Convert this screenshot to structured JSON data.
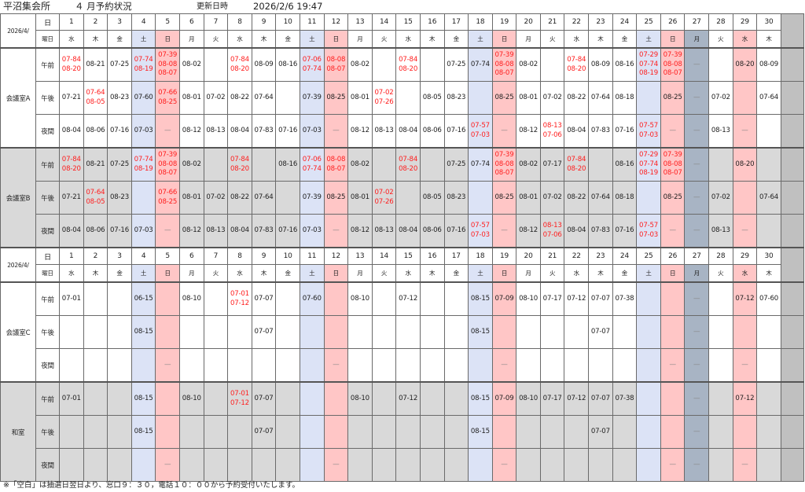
{
  "header": {
    "facility": "平沼集会所",
    "title": "４ 月予約状況",
    "updated_label": "更新日時",
    "updated_value": "2026/2/6 19:47"
  },
  "table": {
    "month_label": "2026/4/",
    "day_label": "日",
    "weekday_label": "曜日",
    "days": [
      {
        "d": "1",
        "w": "水",
        "type": "weekday"
      },
      {
        "d": "2",
        "w": "木",
        "type": "weekday"
      },
      {
        "d": "3",
        "w": "金",
        "type": "weekday"
      },
      {
        "d": "4",
        "w": "土",
        "type": "sat"
      },
      {
        "d": "5",
        "w": "日",
        "type": "sun"
      },
      {
        "d": "6",
        "w": "月",
        "type": "weekday"
      },
      {
        "d": "7",
        "w": "火",
        "type": "weekday"
      },
      {
        "d": "8",
        "w": "水",
        "type": "weekday"
      },
      {
        "d": "9",
        "w": "木",
        "type": "weekday"
      },
      {
        "d": "10",
        "w": "金",
        "type": "weekday"
      },
      {
        "d": "11",
        "w": "土",
        "type": "sat"
      },
      {
        "d": "12",
        "w": "日",
        "type": "sun"
      },
      {
        "d": "13",
        "w": "月",
        "type": "weekday"
      },
      {
        "d": "14",
        "w": "火",
        "type": "weekday"
      },
      {
        "d": "15",
        "w": "水",
        "type": "weekday"
      },
      {
        "d": "16",
        "w": "木",
        "type": "weekday"
      },
      {
        "d": "17",
        "w": "金",
        "type": "weekday"
      },
      {
        "d": "18",
        "w": "土",
        "type": "sat"
      },
      {
        "d": "19",
        "w": "日",
        "type": "sun"
      },
      {
        "d": "20",
        "w": "月",
        "type": "weekday"
      },
      {
        "d": "21",
        "w": "火",
        "type": "weekday"
      },
      {
        "d": "22",
        "w": "水",
        "type": "weekday"
      },
      {
        "d": "23",
        "w": "木",
        "type": "weekday"
      },
      {
        "d": "24",
        "w": "金",
        "type": "weekday"
      },
      {
        "d": "25",
        "w": "土",
        "type": "sat"
      },
      {
        "d": "26",
        "w": "日",
        "type": "sun"
      },
      {
        "d": "27",
        "w": "月",
        "type": "closed"
      },
      {
        "d": "28",
        "w": "火",
        "type": "weekday"
      },
      {
        "d": "29",
        "w": "水",
        "type": "sun"
      },
      {
        "d": "30",
        "w": "木",
        "type": "weekday"
      }
    ],
    "colors": {
      "sat": "#dce3f6",
      "sun": "#ffc6c6",
      "closed": "#a8b4c4",
      "multi_text": "#ff1e1e",
      "alt_row": "#d9d9d9",
      "extra_col": "#c0c0c0"
    },
    "rooms": [
      {
        "name": "会議室A",
        "shaded": false,
        "rows": [
          {
            "slot": "午前",
            "cells": [
              [
                "07-84",
                "08-20"
              ],
              "08-21",
              "07-25",
              [
                "07-74",
                "08-19"
              ],
              [
                "07-39",
                "08-08",
                "08-07"
              ],
              "08-02",
              "",
              [
                "07-84",
                "08-20"
              ],
              "08-09",
              "08-16",
              [
                "07-06",
                "07-74"
              ],
              [
                "08-08",
                "08-07"
              ],
              "08-02",
              "",
              [
                "07-84",
                "08-20"
              ],
              "",
              "07-25",
              "07-74",
              [
                "07-39",
                "08-08",
                "08-07"
              ],
              "08-02",
              "",
              [
                "07-84",
                "08-20"
              ],
              "08-09",
              "08-16",
              [
                "07-29",
                "07-74",
                "08-19"
              ],
              [
                "07-39",
                "08-08",
                "08-07"
              ],
              "—",
              "",
              "08-20",
              "08-09"
            ]
          },
          {
            "slot": "午後",
            "cells": [
              "07-21",
              [
                "07-64",
                "08-05"
              ],
              "08-23",
              "07-60",
              [
                "07-66",
                "08-25"
              ],
              "08-01",
              "07-02",
              "08-22",
              "07-64",
              "",
              "07-39",
              "08-25",
              "08-01",
              [
                "07-02",
                "07-26"
              ],
              "",
              "08-05",
              "08-23",
              "",
              "08-25",
              "08-01",
              "07-02",
              "08-22",
              "07-64",
              "08-18",
              "",
              "08-25",
              "—",
              "07-02",
              "",
              "07-64"
            ]
          },
          {
            "slot": "夜間",
            "cells": [
              "08-04",
              "08-06",
              "07-16",
              "07-03",
              "—",
              "08-12",
              "08-13",
              "08-04",
              "07-83",
              "07-16",
              "07-03",
              "—",
              "08-12",
              "08-13",
              "08-04",
              "08-06",
              "07-16",
              [
                "07-57",
                "07-03"
              ],
              "—",
              "08-12",
              [
                "08-13",
                "07-06"
              ],
              "08-04",
              "07-83",
              "07-16",
              [
                "07-57",
                "07-03"
              ],
              "—",
              "—",
              "08-13",
              "—",
              ""
            ]
          }
        ]
      },
      {
        "name": "会議室B",
        "shaded": true,
        "rows": [
          {
            "slot": "午前",
            "cells": [
              [
                "07-84",
                "08-20"
              ],
              "08-21",
              "07-25",
              [
                "07-74",
                "08-19"
              ],
              [
                "07-39",
                "08-08",
                "08-07"
              ],
              "08-02",
              "",
              [
                "07-84",
                "08-20"
              ],
              "",
              "08-16",
              [
                "07-06",
                "07-74"
              ],
              [
                "08-08",
                "08-07"
              ],
              "08-02",
              "",
              [
                "07-84",
                "08-20"
              ],
              "",
              "07-25",
              "07-74",
              [
                "07-39",
                "08-08",
                "08-07"
              ],
              "08-02",
              "07-17",
              [
                "07-84",
                "08-20"
              ],
              "",
              "08-16",
              [
                "07-29",
                "07-74",
                "08-19"
              ],
              [
                "07-39",
                "08-08",
                "08-07"
              ],
              "—",
              "",
              "08-20",
              ""
            ]
          },
          {
            "slot": "午後",
            "cells": [
              "07-21",
              [
                "07-64",
                "08-05"
              ],
              "08-23",
              "",
              [
                "07-66",
                "08-25"
              ],
              "08-01",
              "07-02",
              "08-22",
              "07-64",
              "",
              "07-39",
              "08-25",
              "08-01",
              [
                "07-02",
                "07-26"
              ],
              "",
              "08-05",
              "08-23",
              "",
              "08-25",
              "08-01",
              "07-02",
              "08-22",
              "07-64",
              "08-18",
              "",
              "08-25",
              "—",
              "07-02",
              "",
              "07-64"
            ]
          },
          {
            "slot": "夜間",
            "cells": [
              "08-04",
              "08-06",
              "07-16",
              "07-03",
              "—",
              "08-12",
              "08-13",
              "08-04",
              "07-83",
              "07-16",
              "07-03",
              "—",
              "08-12",
              "08-13",
              "08-04",
              "08-06",
              "07-16",
              [
                "07-57",
                "07-03"
              ],
              "—",
              "08-12",
              [
                "08-13",
                "07-06"
              ],
              "08-04",
              "07-83",
              "07-16",
              [
                "07-57",
                "07-03"
              ],
              "—",
              "—",
              "08-13",
              "—",
              ""
            ]
          }
        ]
      },
      {
        "name": "会議室C",
        "shaded": false,
        "rows": [
          {
            "slot": "午前",
            "cells": [
              "07-01",
              "",
              "",
              "06-15",
              "",
              "08-10",
              "",
              [
                "07-01",
                "07-12"
              ],
              "07-07",
              "",
              "07-60",
              "",
              "08-10",
              "",
              "07-12",
              "",
              "",
              "08-15",
              "07-09",
              "08-10",
              "07-17",
              "07-12",
              "07-07",
              "07-38",
              "",
              "",
              "—",
              "",
              "07-12",
              "07-60"
            ]
          },
          {
            "slot": "午後",
            "cells": [
              "",
              "",
              "",
              "08-15",
              "",
              "",
              "",
              "",
              "07-07",
              "",
              "",
              "",
              "",
              "",
              "",
              "",
              "",
              "08-15",
              "",
              "",
              "",
              "",
              "07-07",
              "",
              "",
              "",
              "—",
              "",
              "",
              ""
            ]
          },
          {
            "slot": "夜間",
            "cells": [
              "",
              "",
              "",
              "",
              "—",
              "",
              "",
              "",
              "",
              "",
              "",
              "—",
              "",
              "",
              "",
              "",
              "",
              "",
              "—",
              "",
              "",
              "",
              "",
              "",
              "",
              "—",
              "—",
              "",
              "—",
              ""
            ]
          }
        ]
      },
      {
        "name": "和室",
        "shaded": true,
        "rows": [
          {
            "slot": "午前",
            "cells": [
              "07-01",
              "",
              "",
              "08-15",
              "",
              "08-10",
              "",
              [
                "07-01",
                "07-12"
              ],
              "07-07",
              "",
              "",
              "",
              "08-10",
              "",
              "07-12",
              "",
              "",
              "08-15",
              "07-09",
              "08-10",
              "07-17",
              "07-12",
              "07-07",
              "07-38",
              "",
              "",
              "—",
              "",
              "07-12",
              ""
            ]
          },
          {
            "slot": "午後",
            "cells": [
              "",
              "",
              "",
              "08-15",
              "",
              "",
              "",
              "",
              "07-07",
              "",
              "",
              "",
              "",
              "",
              "",
              "",
              "",
              "08-15",
              "",
              "",
              "",
              "",
              "07-07",
              "",
              "",
              "",
              "—",
              "",
              "",
              ""
            ]
          },
          {
            "slot": "夜間",
            "cells": [
              "",
              "",
              "",
              "",
              "—",
              "",
              "",
              "",
              "",
              "",
              "",
              "—",
              "",
              "",
              "",
              "",
              "",
              "",
              "—",
              "",
              "",
              "",
              "",
              "",
              "",
              "—",
              "—",
              "",
              "—",
              ""
            ]
          }
        ]
      }
    ]
  },
  "footer": {
    "note": "※「空白」は抽選日翌日より、窓口９：３０，電話１０：００から予約受付いたします。"
  }
}
